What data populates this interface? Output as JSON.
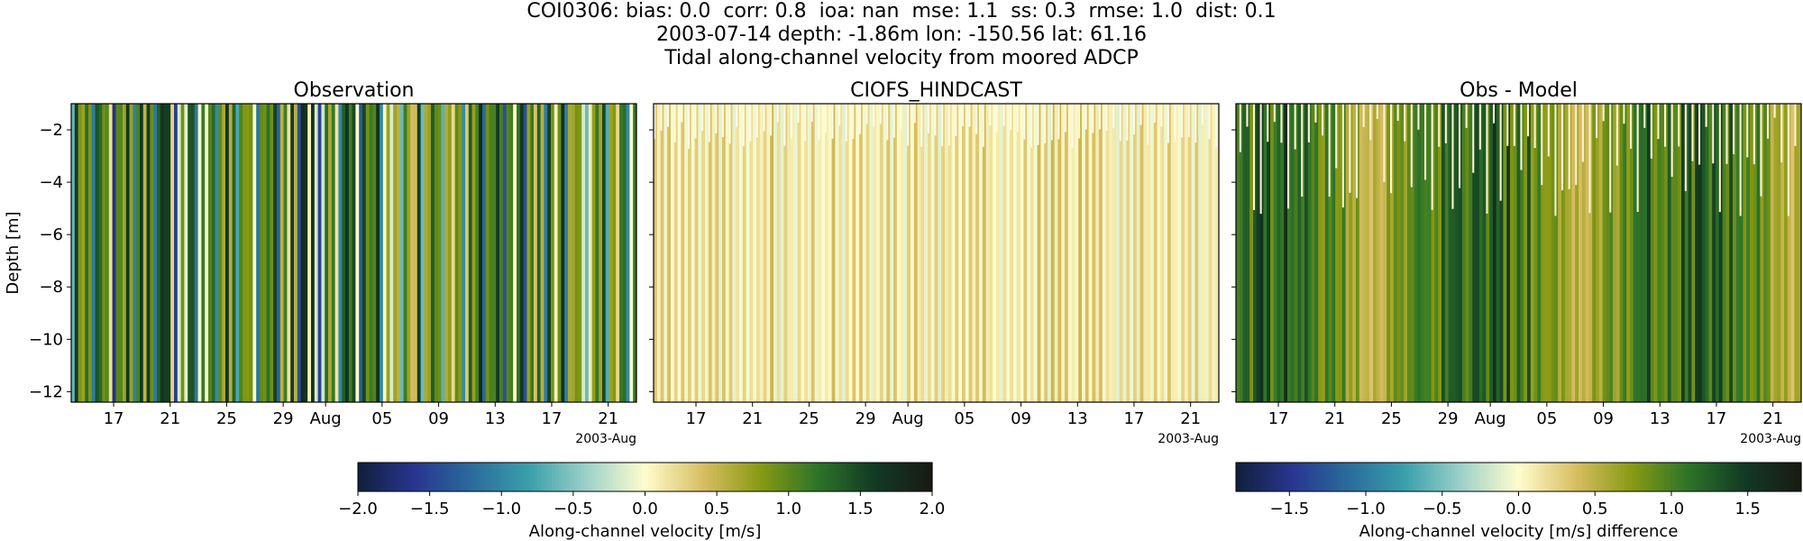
{
  "suptitle": {
    "line1": "COI0306: bias: 0.0  corr: 0.8  ioa: nan  mse: 1.1  ss: 0.3  rmse: 1.0  dist: 0.1",
    "line2": "2003-07-14 depth: -1.86m lon: -150.56 lat: 61.16",
    "line3": "Tidal along-channel velocity from moored ADCP"
  },
  "colormap": {
    "name": "delta",
    "stops": [
      "#111f3c",
      "#283690",
      "#2a6c9b",
      "#3ba0ac",
      "#9ed2c9",
      "#fffdcd",
      "#d9be63",
      "#889a13",
      "#2e7429",
      "#123a24",
      "#191a11"
    ]
  },
  "chart_data": [
    {
      "type": "heatmap",
      "title": "Observation",
      "ylabel": "Depth [m]",
      "ylim": [
        -12.4,
        -1.0
      ],
      "yticks": [
        -2,
        -4,
        -6,
        -8,
        -10,
        -12
      ],
      "xlim": [
        "2003-07-14",
        "2003-08-23"
      ],
      "xticks": [
        {
          "date": "2003-07-17",
          "label": "17"
        },
        {
          "date": "2003-07-21",
          "label": "21"
        },
        {
          "date": "2003-07-25",
          "label": "25"
        },
        {
          "date": "2003-07-29",
          "label": "29"
        },
        {
          "date": "2003-08-01",
          "label": "Aug"
        },
        {
          "date": "2003-08-05",
          "label": "05"
        },
        {
          "date": "2003-08-09",
          "label": "09"
        },
        {
          "date": "2003-08-13",
          "label": "13"
        },
        {
          "date": "2003-08-17",
          "label": "17"
        },
        {
          "date": "2003-08-21",
          "label": "21"
        }
      ],
      "offset_label": "2003-Aug",
      "clim": [
        -2.0,
        2.0
      ],
      "pattern": "obs"
    },
    {
      "type": "heatmap",
      "title": "CIOFS_HINDCAST",
      "ylim": [
        -12.4,
        -1.0
      ],
      "xlim": [
        "2003-07-14",
        "2003-08-23"
      ],
      "xticks": [
        {
          "date": "2003-07-17",
          "label": "17"
        },
        {
          "date": "2003-07-21",
          "label": "21"
        },
        {
          "date": "2003-07-25",
          "label": "25"
        },
        {
          "date": "2003-07-29",
          "label": "29"
        },
        {
          "date": "2003-08-01",
          "label": "Aug"
        },
        {
          "date": "2003-08-05",
          "label": "05"
        },
        {
          "date": "2003-08-09",
          "label": "09"
        },
        {
          "date": "2003-08-13",
          "label": "13"
        },
        {
          "date": "2003-08-17",
          "label": "17"
        },
        {
          "date": "2003-08-21",
          "label": "21"
        }
      ],
      "offset_label": "2003-Aug",
      "clim": [
        -2.0,
        2.0
      ],
      "pattern": "model"
    },
    {
      "type": "heatmap",
      "title": "Obs - Model",
      "ylim": [
        -12.4,
        -1.0
      ],
      "xlim": [
        "2003-07-14",
        "2003-08-23"
      ],
      "xticks": [
        {
          "date": "2003-07-17",
          "label": "17"
        },
        {
          "date": "2003-07-21",
          "label": "21"
        },
        {
          "date": "2003-07-25",
          "label": "25"
        },
        {
          "date": "2003-07-29",
          "label": "29"
        },
        {
          "date": "2003-08-01",
          "label": "Aug"
        },
        {
          "date": "2003-08-05",
          "label": "05"
        },
        {
          "date": "2003-08-09",
          "label": "09"
        },
        {
          "date": "2003-08-13",
          "label": "13"
        },
        {
          "date": "2003-08-17",
          "label": "17"
        },
        {
          "date": "2003-08-21",
          "label": "21"
        }
      ],
      "offset_label": "2003-Aug",
      "clim": [
        -1.85,
        1.85
      ],
      "pattern": "diff"
    }
  ],
  "colorbars": [
    {
      "label": "Along-channel velocity [m/s]",
      "range": [
        -2.0,
        2.0
      ],
      "ticks": [
        {
          "value": -2.0,
          "label": "−2.0"
        },
        {
          "value": -1.5,
          "label": "−1.5"
        },
        {
          "value": -1.0,
          "label": "−1.0"
        },
        {
          "value": -0.5,
          "label": "−0.5"
        },
        {
          "value": 0.0,
          "label": "0.0"
        },
        {
          "value": 0.5,
          "label": "0.5"
        },
        {
          "value": 1.0,
          "label": "1.0"
        },
        {
          "value": 1.5,
          "label": "1.5"
        },
        {
          "value": 2.0,
          "label": "2.0"
        }
      ]
    },
    {
      "label": "Along-channel velocity [m/s] difference",
      "range": [
        -1.85,
        1.85
      ],
      "ticks": [
        {
          "value": -1.5,
          "label": "−1.5"
        },
        {
          "value": -1.0,
          "label": "−1.0"
        },
        {
          "value": -0.5,
          "label": "−0.5"
        },
        {
          "value": 0.0,
          "label": "0.0"
        },
        {
          "value": 0.5,
          "label": "0.5"
        },
        {
          "value": 1.0,
          "label": "1.0"
        },
        {
          "value": 1.5,
          "label": "1.5"
        }
      ]
    }
  ]
}
